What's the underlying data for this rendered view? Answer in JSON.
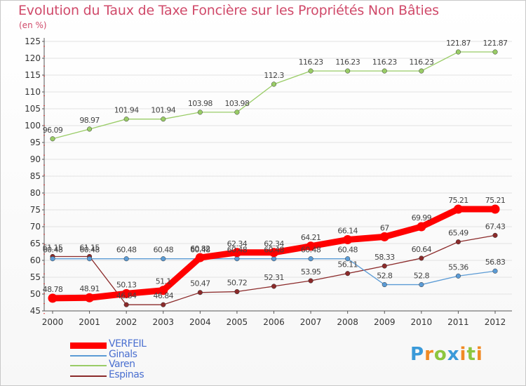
{
  "header": {
    "title": "Evolution du Taux de Taxe Foncière sur les Propriétés Non Bâties",
    "unit": "(en %)"
  },
  "chart_data": {
    "type": "line",
    "title": "Evolution du Taux de Taxe Foncière sur les Propriétés Non Bâties",
    "ylabel": "(en %)",
    "xlabel": "",
    "x": [
      "2000",
      "2001",
      "2002",
      "2003",
      "2004",
      "2005",
      "2006",
      "2007",
      "2008",
      "2009",
      "2010",
      "2011",
      "2012"
    ],
    "ylim": [
      45,
      125
    ],
    "yticks": [
      45,
      50,
      55,
      60,
      65,
      70,
      75,
      80,
      85,
      90,
      95,
      100,
      105,
      110,
      115,
      120,
      125
    ],
    "grid": "horizontal",
    "legend_position": "bottom-left",
    "series": [
      {
        "name": "VERFEIL",
        "color": "#ff0000",
        "values": [
          48.78,
          48.91,
          50.13,
          51.1,
          60.82,
          62.34,
          62.34,
          64.21,
          66.14,
          67,
          69.99,
          75.21,
          75.21
        ],
        "labels": [
          "48.78",
          "48.91",
          "50.13",
          "51.1",
          "60.82",
          "62.34",
          "62.34",
          "64.21",
          "66.14",
          "67",
          "69.99",
          "75.21",
          "75.21"
        ]
      },
      {
        "name": "Ginals",
        "color": "#5b9bd5",
        "values": [
          60.48,
          60.48,
          60.48,
          60.48,
          60.48,
          60.48,
          60.48,
          60.48,
          60.48,
          52.8,
          52.8,
          55.36,
          56.83
        ],
        "labels": [
          "60.48",
          "60.48",
          "60.48",
          "60.48",
          "60.48",
          "60.48",
          "60.48",
          "60.48",
          "60.48",
          "52.8",
          "52.8",
          "55.36",
          "56.83"
        ]
      },
      {
        "name": "Varen",
        "color": "#99cc66",
        "values": [
          96.09,
          98.97,
          101.94,
          101.94,
          103.98,
          103.98,
          112.3,
          116.23,
          116.23,
          116.23,
          116.23,
          121.87,
          121.87
        ],
        "labels": [
          "96.09",
          "98.97",
          "101.94",
          "101.94",
          "103.98",
          "103.98",
          "112.3",
          "116.23",
          "116.23",
          "116.23",
          "116.23",
          "121.87",
          "121.87"
        ]
      },
      {
        "name": "Espinas",
        "color": "#8b2a2a",
        "values": [
          61.15,
          61.15,
          46.84,
          46.84,
          50.47,
          50.72,
          52.31,
          53.95,
          56.11,
          58.33,
          60.64,
          65.49,
          67.43
        ],
        "labels": [
          "61.15",
          "61.15",
          "46.84",
          "46.84",
          "50.47",
          "50.72",
          "52.31",
          "53.95",
          "56.11",
          "58.33",
          "60.64",
          "65.49",
          "67.43"
        ]
      }
    ]
  },
  "legend": {
    "items": [
      {
        "label": "VERFEIL",
        "color": "#ff0000",
        "weight": "thick"
      },
      {
        "label": "Ginals",
        "color": "#5b9bd5",
        "weight": "thin"
      },
      {
        "label": "Varen",
        "color": "#99cc66",
        "weight": "thin"
      },
      {
        "label": "Espinas",
        "color": "#8b2a2a",
        "weight": "thin"
      }
    ]
  },
  "brand": {
    "logo_text": "Proxiti",
    "letters": [
      {
        "ch": "P",
        "color": "#3a9ad9"
      },
      {
        "ch": "r",
        "color": "#f08a24"
      },
      {
        "ch": "o",
        "color": "#8cc63f"
      },
      {
        "ch": "x",
        "color": "#3a9ad9"
      },
      {
        "ch": "i",
        "color": "#f08a24"
      },
      {
        "ch": "t",
        "color": "#8cc63f"
      },
      {
        "ch": "i",
        "color": "#f08a24"
      }
    ]
  }
}
